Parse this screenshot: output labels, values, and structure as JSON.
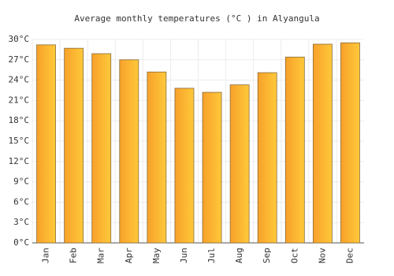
{
  "chart_data": {
    "type": "bar",
    "title": "Average monthly temperatures (°C ) in Alyangula",
    "categories": [
      "Jan",
      "Feb",
      "Mar",
      "Apr",
      "May",
      "Jun",
      "Jul",
      "Aug",
      "Sep",
      "Oct",
      "Nov",
      "Dec"
    ],
    "values": [
      29.2,
      28.7,
      27.9,
      27.0,
      25.2,
      22.8,
      22.2,
      23.3,
      25.1,
      27.4,
      29.3,
      29.5
    ],
    "color": "#f7a12a",
    "ylim": [
      0,
      30
    ],
    "yticks": [
      {
        "value": 0,
        "label": "0°C"
      },
      {
        "value": 3,
        "label": "3°C"
      },
      {
        "value": 6,
        "label": "6°C"
      },
      {
        "value": 9,
        "label": "9°C"
      },
      {
        "value": 12,
        "label": "12°C"
      },
      {
        "value": 15,
        "label": "15°C"
      },
      {
        "value": 18,
        "label": "18°C"
      },
      {
        "value": 21,
        "label": "21°C"
      },
      {
        "value": 24,
        "label": "24°C"
      },
      {
        "value": 27,
        "label": "27°C"
      },
      {
        "value": 30,
        "label": "30°C"
      }
    ],
    "grid": true
  }
}
